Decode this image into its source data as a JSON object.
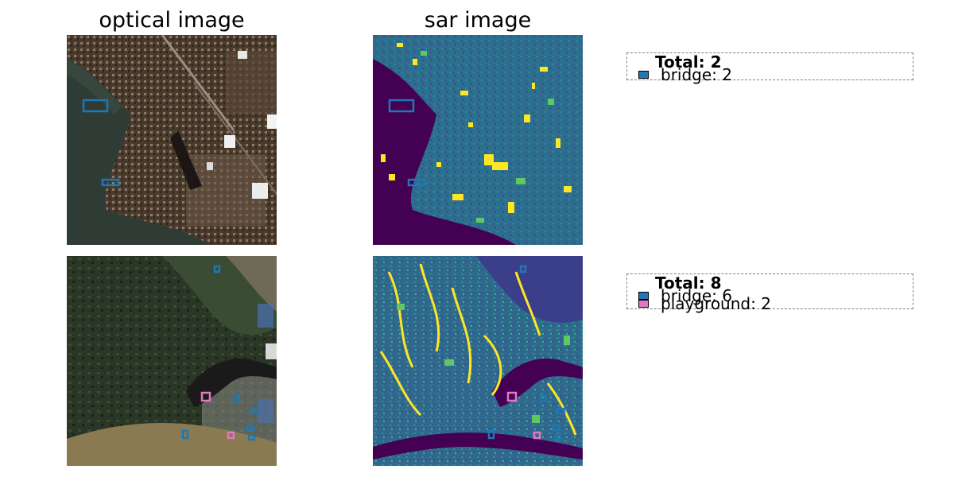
{
  "titles": {
    "optical": "optical image",
    "sar": "sar image"
  },
  "colors": {
    "bridge": "#1f77b4",
    "playground": "#e377c2"
  },
  "legends": [
    {
      "total": "Total: 2",
      "items": [
        {
          "label": "bridge: 2",
          "color": "#1f77b4"
        }
      ]
    },
    {
      "total": "Total: 8",
      "items": [
        {
          "label": "bridge: 6",
          "color": "#1f77b4"
        },
        {
          "label": "playground: 2",
          "color": "#e377c2"
        }
      ]
    }
  ]
}
